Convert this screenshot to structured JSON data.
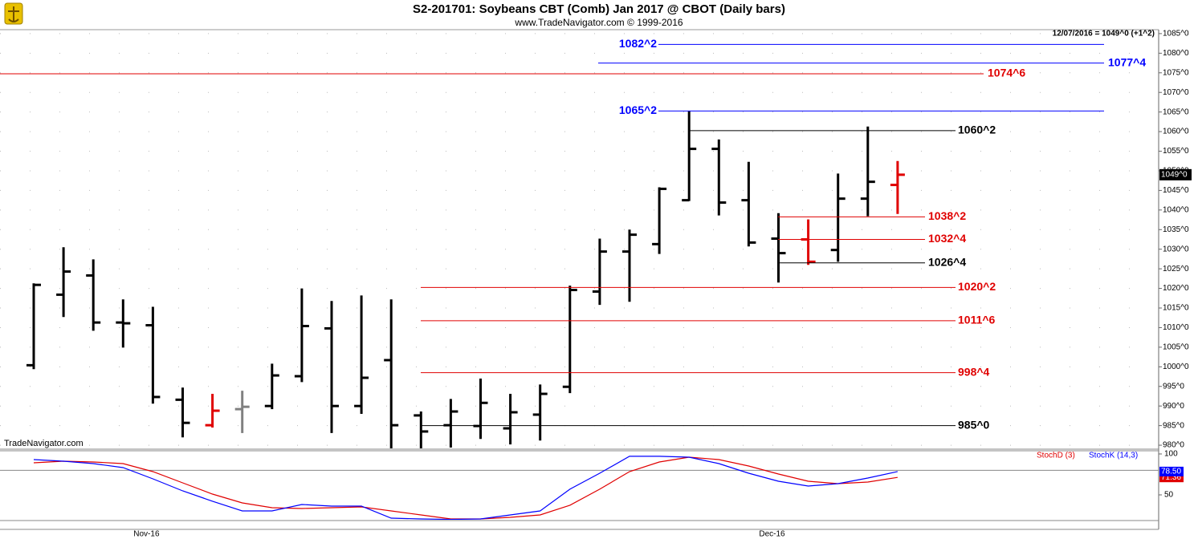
{
  "chart_data": [
    {
      "type": "ohlc",
      "title": "S2-201701:  Soybeans CBT (Comb) Jan 2017 @ CBOT  (Daily bars)",
      "subtitle": "www.TradeNavigator.com © 1999-2016",
      "info": "12/07/2016 = 1049^0 (+1^2)",
      "watermark": "TradeNavigator.com",
      "categories": [
        null,
        null,
        null,
        null,
        "Nov-16",
        null,
        null,
        null,
        null,
        null,
        null,
        null,
        null,
        null,
        null,
        null,
        null,
        null,
        null,
        null,
        null,
        null,
        null,
        null,
        null,
        "Dec-16",
        null,
        null,
        null,
        null
      ],
      "open": [
        1000.4,
        1018.4,
        1023.3,
        1011.3,
        1010.6,
        991.6,
        985.1,
        989.2,
        990.0,
        997.6,
        1009.8,
        990.0,
        1001.7,
        987.6,
        985.1,
        984.9,
        984.3,
        987.8,
        994.9,
        1019.2,
        1029.4,
        1031.3,
        1042.5,
        1055.6,
        1042.5,
        1032.7,
        1032.5,
        1029.8,
        1042.9,
        1046.4
      ],
      "high": [
        1021.3,
        1030.5,
        1027.4,
        1017.2,
        1015.3,
        994.7,
        993.1,
        993.9,
        1000.8,
        1020.0,
        1016.8,
        1018.2,
        1017.2,
        988.6,
        991.8,
        997.0,
        993.1,
        995.5,
        1020.7,
        1032.7,
        1035.0,
        1045.8,
        1065.25,
        1058.0,
        1052.3,
        1039.2,
        1037.6,
        1049.3,
        1061.3,
        1052.5
      ],
      "low": [
        999.4,
        1012.7,
        1009.2,
        1004.9,
        990.6,
        982.0,
        984.5,
        983.1,
        989.2,
        996.1,
        983.1,
        988.0,
        978.5,
        979.0,
        979.4,
        981.6,
        980.2,
        981.2,
        993.3,
        1015.8,
        1016.6,
        1028.8,
        1042.3,
        1038.6,
        1030.7,
        1021.5,
        1026.0,
        1026.8,
        1038.4,
        1039.0
      ],
      "close": [
        1020.9,
        1024.3,
        1011.3,
        1011.1,
        992.3,
        985.7,
        988.8,
        989.8,
        997.8,
        1010.4,
        990.0,
        997.2,
        985.1,
        983.5,
        988.6,
        990.8,
        988.4,
        993.1,
        1019.6,
        1029.4,
        1033.7,
        1045.4,
        1055.6,
        1041.9,
        1031.7,
        1029.0,
        1026.8,
        1042.9,
        1047.2,
        1049.0
      ],
      "colors": [
        "#000000",
        "#000000",
        "#000000",
        "#000000",
        "#000000",
        "#000000",
        "#e00000",
        "#808080",
        "#000000",
        "#000000",
        "#000000",
        "#000000",
        "#000000",
        "#000000",
        "#000000",
        "#000000",
        "#000000",
        "#000000",
        "#000000",
        "#000000",
        "#000000",
        "#000000",
        "#000000",
        "#000000",
        "#000000",
        "#000000",
        "#e00000",
        "#000000",
        "#000000",
        "#e00000"
      ],
      "ylim": [
        979.4,
        1085.8
      ],
      "yticks": [
        {
          "value": 980,
          "label": "980^0"
        },
        {
          "value": 985,
          "label": "985^0"
        },
        {
          "value": 990,
          "label": "990^0"
        },
        {
          "value": 995,
          "label": "995^0"
        },
        {
          "value": 1000,
          "label": "1000^0"
        },
        {
          "value": 1005,
          "label": "1005^0"
        },
        {
          "value": 1010,
          "label": "1010^0"
        },
        {
          "value": 1015,
          "label": "1015^0"
        },
        {
          "value": 1020,
          "label": "1020^0"
        },
        {
          "value": 1025,
          "label": "1025^0"
        },
        {
          "value": 1030,
          "label": "1030^0"
        },
        {
          "value": 1035,
          "label": "1035^0"
        },
        {
          "value": 1040,
          "label": "1040^0"
        },
        {
          "value": 1045,
          "label": "1045^0"
        },
        {
          "value": 1050,
          "label": "1050^0"
        },
        {
          "value": 1055,
          "label": "1055^0"
        },
        {
          "value": 1060,
          "label": "1060^0"
        },
        {
          "value": 1065,
          "label": "1065^0"
        },
        {
          "value": 1070,
          "label": "1070^0"
        },
        {
          "value": 1075,
          "label": "1075^0"
        },
        {
          "value": 1080,
          "label": "1080^0"
        },
        {
          "value": 1085,
          "label": "1085^0"
        }
      ],
      "last_price": {
        "value": 1049,
        "label": "1049^0"
      },
      "levels": [
        {
          "value": 1082.25,
          "label": "1082^2",
          "color": "#0000ff"
        },
        {
          "value": 1077.5,
          "label": "1077^4",
          "color": "#0000ff"
        },
        {
          "value": 1074.75,
          "label": "1074^6",
          "color": "#e00000"
        },
        {
          "value": 1065.25,
          "label": "1065^2",
          "color": "#0000ff"
        },
        {
          "value": 1060.25,
          "label": "1060^2",
          "color": "#000000"
        },
        {
          "value": 1038.25,
          "label": "1038^2",
          "color": "#e00000"
        },
        {
          "value": 1032.5,
          "label": "1032^4",
          "color": "#e00000"
        },
        {
          "value": 1026.5,
          "label": "1026^4",
          "color": "#000000"
        },
        {
          "value": 1020.25,
          "label": "1020^2",
          "color": "#e00000"
        },
        {
          "value": 1011.75,
          "label": "1011^6",
          "color": "#e00000"
        },
        {
          "value": 998.5,
          "label": "998^4",
          "color": "#e00000"
        },
        {
          "value": 985,
          "label": "985^0",
          "color": "#000000"
        }
      ]
    },
    {
      "type": "line",
      "ylim": [
        19.6,
        103.9
      ],
      "yticks": [
        50,
        100
      ],
      "levels": [
        80
      ],
      "series": [
        {
          "name": "StochD (3)",
          "color": "#e00000",
          "tag": "71.36",
          "values": [
            89.2,
            91.2,
            90.2,
            88.2,
            78.4,
            64.7,
            51.0,
            40.2,
            34.3,
            33.3,
            34.3,
            35.3,
            30.4,
            25.5,
            20.6,
            20.6,
            22.5,
            25.5,
            37.3,
            56.9,
            78.4,
            90.2,
            96.1,
            93.1,
            85.3,
            75.5,
            66.7,
            63.7,
            65.7,
            71.36
          ]
        },
        {
          "name": "StochK (14,3)",
          "color": "#0000ff",
          "tag": "78.50",
          "values": [
            93.1,
            91.2,
            88.2,
            83.3,
            69.6,
            54.9,
            42.2,
            30.4,
            30.4,
            38.2,
            36.3,
            36.3,
            21.6,
            20.6,
            20.0,
            20.6,
            25.5,
            30.4,
            56.9,
            76.5,
            97.1,
            97.1,
            96.1,
            88.2,
            76.5,
            66.7,
            60.8,
            63.7,
            70.6,
            78.5
          ]
        }
      ]
    }
  ]
}
